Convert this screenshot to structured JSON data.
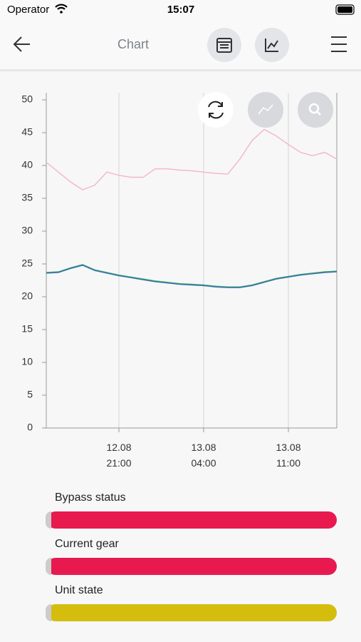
{
  "status_bar": {
    "carrier": "Operator",
    "time": "15:07"
  },
  "header": {
    "title": "Chart"
  },
  "chart_data": {
    "type": "line",
    "categories": [
      null,
      null,
      null,
      null,
      null,
      null,
      "12.08\n21:00",
      null,
      null,
      null,
      null,
      null,
      null,
      "13.08\n04:00",
      null,
      null,
      null,
      null,
      null,
      null,
      "13.08\n11:00",
      null,
      null,
      null,
      null
    ],
    "series": [
      {
        "color": "#f5b8c9",
        "values": [
          40.5,
          39,
          37.5,
          36.3,
          37,
          39,
          38.5,
          38.2,
          38.2,
          39.5,
          39.5,
          39.3,
          39.2,
          39,
          38.8,
          38.7,
          41,
          43.8,
          45.5,
          44.5,
          43.2,
          42,
          41.5,
          42,
          41
        ]
      },
      {
        "color": "#3dae6a",
        "values": [
          23.7,
          23.8,
          24.4,
          24.9,
          24.1,
          23.7,
          23.3,
          23,
          22.7,
          22.4,
          22.2,
          22,
          21.9,
          21.8,
          21.6,
          21.5,
          21.5,
          21.8,
          22.3,
          22.8,
          23.1,
          23.4,
          23.6,
          23.8,
          23.9
        ]
      },
      {
        "color": "#3b6fb0",
        "values": [
          23.6,
          23.7,
          24.3,
          24.8,
          24,
          23.6,
          23.2,
          22.9,
          22.6,
          22.3,
          22.1,
          21.9,
          21.8,
          21.7,
          21.5,
          21.4,
          21.4,
          21.7,
          22.2,
          22.7,
          23,
          23.3,
          23.5,
          23.7,
          23.8
        ]
      }
    ],
    "ylim": [
      0,
      50
    ],
    "yticks": [
      0,
      5,
      10,
      15,
      20,
      25,
      30,
      35,
      40,
      45,
      50
    ],
    "grid": true
  },
  "status_rows": [
    {
      "label": "Bypass status",
      "color": "#e8194f"
    },
    {
      "label": "Current gear",
      "color": "#e8194f"
    },
    {
      "label": "Unit state",
      "color": "#d5bd0e"
    }
  ]
}
